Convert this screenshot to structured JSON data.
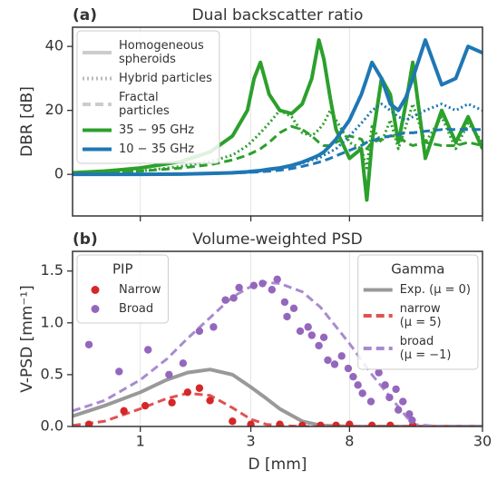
{
  "chart_data": [
    {
      "type": "line",
      "panel_label": "(a)",
      "title": "Dual backscatter ratio",
      "y_label": "DBR [dB]",
      "log_x": true,
      "grid": true,
      "xtick_labels": false,
      "xlim": [
        0.51,
        30
      ],
      "xticks": [
        1,
        3,
        8,
        30
      ],
      "ylim": [
        -13,
        46
      ],
      "yticks": [
        0,
        20,
        40
      ],
      "x": [
        0.51,
        0.7,
        1,
        1.5,
        2,
        2.5,
        2.9,
        3.1,
        3.3,
        3.6,
        4,
        4.5,
        5,
        5.5,
        5.9,
        6.2,
        6.6,
        7,
        8,
        9,
        9.5,
        10,
        11,
        12,
        13,
        14,
        15,
        17,
        20,
        23,
        26,
        30
      ],
      "series": [
        {
          "color": "#2ca02c",
          "style": "solid",
          "values": [
            0.5,
            1,
            2,
            4,
            7,
            12,
            20,
            30,
            35,
            25,
            20,
            19,
            22,
            30,
            42,
            36,
            24,
            14,
            5,
            8,
            -8,
            10,
            30,
            25,
            10,
            22,
            35,
            5,
            20,
            10,
            18,
            8
          ]
        },
        {
          "color": "#2ca02c",
          "style": "dotted",
          "values": [
            0.3,
            0.6,
            1,
            2.5,
            4,
            6,
            9,
            11,
            13,
            16,
            20,
            18,
            13,
            12,
            14,
            16,
            20,
            17,
            10,
            8,
            2,
            15,
            10,
            17,
            8,
            15,
            22,
            10,
            18,
            8,
            16,
            10
          ]
        },
        {
          "color": "#2ca02c",
          "style": "dashed",
          "values": [
            0.2,
            0.5,
            1,
            2,
            3,
            4.5,
            6,
            7,
            8,
            10,
            13,
            15,
            14,
            12,
            10,
            9,
            9,
            10,
            12,
            11,
            8,
            10,
            11,
            12,
            12,
            10,
            9,
            10,
            9,
            9,
            10,
            9
          ]
        },
        {
          "color": "#1f77b4",
          "style": "solid",
          "values": [
            0,
            0,
            0,
            0.1,
            0.3,
            0.5,
            0.8,
            1,
            1.2,
            1.6,
            2,
            2.8,
            3.8,
            5,
            6,
            7,
            9,
            11,
            17,
            25,
            30,
            35,
            30,
            22,
            20,
            24,
            30,
            42,
            28,
            30,
            40,
            38
          ]
        },
        {
          "color": "#1f77b4",
          "style": "dotted",
          "values": [
            0,
            0,
            0,
            0.1,
            0.2,
            0.4,
            0.6,
            0.8,
            1,
            1.3,
            2,
            2.5,
            3.5,
            4.5,
            5,
            6,
            7,
            8,
            12,
            16,
            18,
            20,
            22,
            20,
            18,
            17,
            18,
            20,
            22,
            20,
            22,
            20
          ]
        },
        {
          "color": "#1f77b4",
          "style": "dashed",
          "values": [
            0,
            0,
            0,
            0.1,
            0.2,
            0.4,
            0.6,
            0.7,
            0.8,
            1,
            1.3,
            1.8,
            2.5,
            3.2,
            3.8,
            4.3,
            5,
            5.8,
            7.5,
            9,
            10,
            10.5,
            11.5,
            12,
            12.5,
            13,
            13,
            13.5,
            14,
            14,
            14,
            14
          ]
        }
      ],
      "legends": [
        {
          "loc": "upper left",
          "entries": [
            {
              "name": [
                "Homogeneous",
                "spheroids"
              ],
              "kind": "line",
              "color": "#cccccc",
              "style": "solid"
            },
            {
              "name": [
                "Hybrid particles"
              ],
              "kind": "line",
              "color": "#bbbbbb",
              "style": "dotted"
            },
            {
              "name": [
                "Fractal",
                "particles"
              ],
              "kind": "line",
              "color": "#cccccc",
              "style": "dashed"
            },
            {
              "name": [
                "35 − 95 GHz"
              ],
              "kind": "line",
              "color": "#2ca02c",
              "style": "solid"
            },
            {
              "name": [
                "10 − 35 GHz"
              ],
              "kind": "line",
              "color": "#1f77b4",
              "style": "solid"
            }
          ]
        }
      ]
    },
    {
      "type": "line",
      "panel_label": "(b)",
      "title": "Volume-weighted PSD",
      "y_label": "V-PSD [mm⁻¹]",
      "x_label": "D [mm]",
      "log_x": true,
      "grid": true,
      "xtick_labels": true,
      "xlim": [
        0.51,
        30
      ],
      "xticks": [
        1,
        3,
        8,
        30
      ],
      "ylim": [
        0,
        1.69
      ],
      "yticks": [
        {
          "value": 0,
          "label": "0.0"
        },
        0.5,
        {
          "value": 1,
          "label": "1.0"
        },
        1.5
      ],
      "series": [
        {
          "kind": "line",
          "color": "#999999",
          "style": "solid",
          "x": [
            0.51,
            0.7,
            1,
            1.3,
            1.6,
            2,
            2.5,
            3,
            3.5,
            4,
            5,
            6,
            8,
            10,
            15,
            20,
            30
          ],
          "values": [
            0.1,
            0.2,
            0.33,
            0.45,
            0.52,
            0.55,
            0.5,
            0.38,
            0.27,
            0.17,
            0.05,
            0.01,
            0,
            0,
            0,
            0,
            0
          ]
        },
        {
          "kind": "line",
          "color": "#e05252",
          "style": "dashed",
          "x": [
            0.51,
            0.7,
            1,
            1.3,
            1.6,
            2,
            2.5,
            3,
            3.5,
            4,
            5,
            6,
            8,
            10,
            15,
            20,
            30
          ],
          "values": [
            0.01,
            0.05,
            0.17,
            0.27,
            0.32,
            0.3,
            0.18,
            0.07,
            0.02,
            0.01,
            0,
            0,
            0,
            0,
            0,
            0,
            0
          ]
        },
        {
          "kind": "line",
          "color": "#a98bd0",
          "style": "dashed",
          "x": [
            0.51,
            0.7,
            1,
            1.3,
            1.6,
            2,
            2.5,
            3,
            3.5,
            4,
            5,
            6,
            8,
            10,
            15,
            20,
            30
          ],
          "values": [
            0.15,
            0.25,
            0.45,
            0.65,
            0.85,
            1.05,
            1.25,
            1.35,
            1.39,
            1.38,
            1.3,
            1.15,
            0.8,
            0.5,
            0.02,
            0,
            0
          ]
        },
        {
          "kind": "scatter",
          "color": "#d62728",
          "x": [
            0.6,
            0.85,
            1.05,
            1.37,
            1.6,
            1.8,
            2.0,
            2.5,
            3,
            4,
            5,
            6,
            7,
            8,
            10,
            12,
            15
          ],
          "values": [
            0.02,
            0.15,
            0.2,
            0.23,
            0.33,
            0.37,
            0.25,
            0.05,
            0.02,
            0.02,
            0.01,
            0.01,
            0.01,
            0.02,
            0.01,
            0.01,
            0.01
          ]
        },
        {
          "kind": "scatter",
          "color": "#9467bd",
          "x": [
            0.6,
            0.81,
            1.08,
            1.33,
            1.53,
            1.8,
            2.07,
            2.33,
            2.53,
            2.67,
            3.09,
            3.37,
            3.7,
            3.9,
            4.2,
            4.3,
            4.6,
            4.9,
            5.3,
            5.5,
            5.9,
            6.2,
            6.45,
            6.9,
            7.4,
            7.9,
            8.3,
            8.7,
            9.1,
            9.9,
            10.7,
            11.4,
            11.9,
            12.7,
            13,
            13.6,
            14.5,
            14.9
          ],
          "values": [
            0.79,
            0.53,
            0.74,
            0.5,
            0.61,
            0.92,
            0.96,
            1.22,
            1.24,
            1.34,
            1.36,
            1.38,
            1.32,
            1.42,
            1.2,
            1.06,
            1.14,
            0.92,
            0.96,
            0.88,
            0.78,
            0.86,
            0.64,
            0.6,
            0.68,
            0.56,
            0.48,
            0.4,
            0.32,
            0.24,
            0.52,
            0.4,
            0.28,
            0.36,
            0.16,
            0.24,
            0.12,
            0.06
          ]
        }
      ],
      "legends": [
        {
          "loc": "upper left",
          "title": "PIP",
          "entries": [
            {
              "name": [
                "Narrow"
              ],
              "kind": "scatter",
              "color": "#d62728"
            },
            {
              "name": [
                "Broad"
              ],
              "kind": "scatter",
              "color": "#9467bd"
            }
          ]
        },
        {
          "loc": "upper right",
          "title": "Gamma",
          "entries": [
            {
              "name": [
                "Exp. (μ = 0)"
              ],
              "kind": "line",
              "color": "#999999",
              "style": "solid"
            },
            {
              "name": [
                "narrow",
                "(μ = 5)"
              ],
              "kind": "line",
              "color": "#e05252",
              "style": "dashed"
            },
            {
              "name": [
                "broad",
                "(μ = −1)"
              ],
              "kind": "line",
              "color": "#a98bd0",
              "style": "dashed"
            }
          ]
        }
      ]
    }
  ]
}
